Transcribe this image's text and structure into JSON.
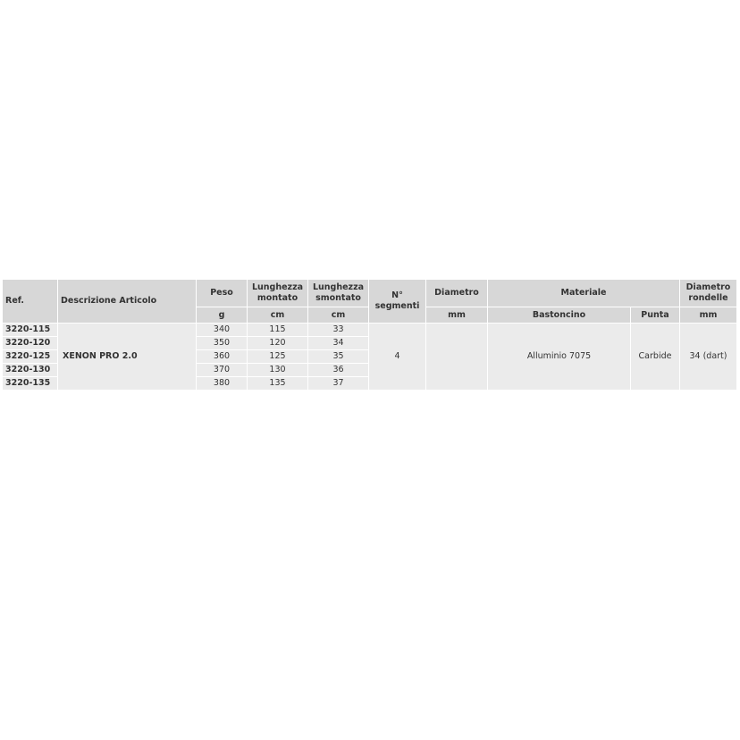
{
  "table": {
    "headers": {
      "ref": "Ref.",
      "descrizione": "Descrizione Articolo",
      "peso": "Peso",
      "lunghezza_montato": [
        "Lunghezza",
        "montato"
      ],
      "lunghezza_smontato": [
        "Lunghezza",
        "smontato"
      ],
      "segmenti": [
        "N°",
        "segmenti"
      ],
      "diametro": "Diametro",
      "materiale": "Materiale",
      "diametro_rondelle": [
        "Diametro",
        "rondelle"
      ]
    },
    "units": {
      "peso": "g",
      "lunghezza_montato": "cm",
      "lunghezza_smontato": "cm",
      "diametro": "mm",
      "bastoncino": "Bastoncino",
      "punta": "Punta",
      "diametro_rondelle": "mm"
    },
    "rows": [
      {
        "ref": "3220-115",
        "peso": "340",
        "montato": "115",
        "smontato": "33"
      },
      {
        "ref": "3220-120",
        "peso": "350",
        "montato": "120",
        "smontato": "34"
      },
      {
        "ref": "3220-125",
        "peso": "360",
        "montato": "125",
        "smontato": "35"
      },
      {
        "ref": "3220-130",
        "peso": "370",
        "montato": "130",
        "smontato": "36"
      },
      {
        "ref": "3220-135",
        "peso": "380",
        "montato": "135",
        "smontato": "37"
      }
    ],
    "shared": {
      "descrizione": "XENON PRO 2.0",
      "segmenti": "4",
      "diametro": "",
      "bastoncino": "Alluminio 7075",
      "punta": "Carbide",
      "rondelle": "34 (dart)"
    }
  }
}
